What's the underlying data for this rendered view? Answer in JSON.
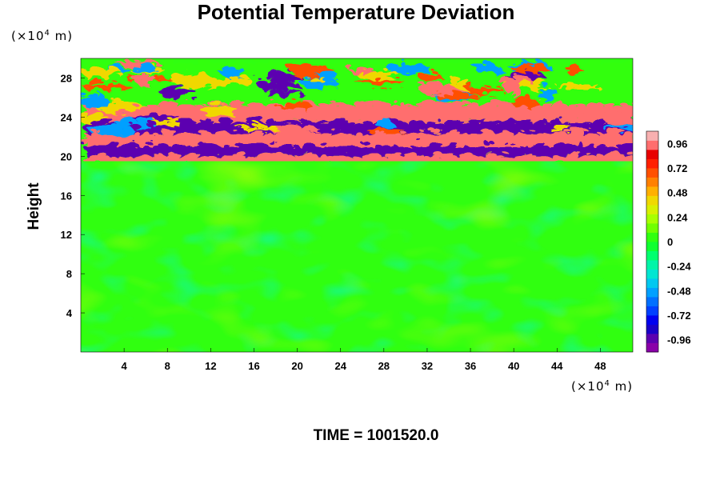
{
  "chart_data": {
    "type": "heatmap",
    "title": "Potential Temperature Deviation",
    "ylabel": "Height",
    "xlabel": "",
    "x_unit": {
      "prefix": "(×10",
      "exp": "4",
      "suffix": " m)"
    },
    "y_unit": {
      "prefix": "(×10",
      "exp": "4",
      "suffix": " m)"
    },
    "xlim": [
      0,
      51
    ],
    "ylim": [
      0,
      30
    ],
    "x_ticks": [
      {
        "v": 4,
        "label": "4"
      },
      {
        "v": 8,
        "label": "8"
      },
      {
        "v": 12,
        "label": "12"
      },
      {
        "v": 16,
        "label": "16"
      },
      {
        "v": 20,
        "label": "20"
      },
      {
        "v": 24,
        "label": "24"
      },
      {
        "v": 28,
        "label": "28"
      },
      {
        "v": 32,
        "label": "32"
      },
      {
        "v": 36,
        "label": "36"
      },
      {
        "v": 40,
        "label": "40"
      },
      {
        "v": 44,
        "label": "44"
      },
      {
        "v": 48,
        "label": "48"
      }
    ],
    "y_ticks": [
      {
        "v": 4,
        "label": "4"
      },
      {
        "v": 8,
        "label": "8"
      },
      {
        "v": 12,
        "label": "12"
      },
      {
        "v": 16,
        "label": "16"
      },
      {
        "v": 20,
        "label": "20"
      },
      {
        "v": 24,
        "label": "24"
      },
      {
        "v": 28,
        "label": "28"
      }
    ],
    "colorbar": {
      "range": [
        -1.08,
        1.08
      ],
      "labels": [
        {
          "v": 0.96,
          "label": "0.96"
        },
        {
          "v": 0.72,
          "label": "0.72"
        },
        {
          "v": 0.48,
          "label": "0.48"
        },
        {
          "v": 0.24,
          "label": "0.24"
        },
        {
          "v": 0,
          "label": "0"
        },
        {
          "v": -0.24,
          "label": "-0.24"
        },
        {
          "v": -0.48,
          "label": "-0.48"
        },
        {
          "v": -0.72,
          "label": "-0.72"
        },
        {
          "v": -0.96,
          "label": "-0.96"
        }
      ],
      "colors": [
        "#8a00a8",
        "#5c00b0",
        "#1a00c8",
        "#0000f0",
        "#0040ff",
        "#0070ff",
        "#00a0ff",
        "#00c8f0",
        "#00e6d2",
        "#00f5a8",
        "#00ff6e",
        "#10ff30",
        "#30ff10",
        "#70ff00",
        "#a8ff00",
        "#d8f000",
        "#f0d800",
        "#ffb000",
        "#ff8000",
        "#ff5000",
        "#ff2000",
        "#e80000",
        "#ff6e6e",
        "#f8b0b0"
      ]
    },
    "regions": [
      {
        "y": [
          0,
          19.5
        ],
        "value": 0.0,
        "description": "near-zero field with weak eddies"
      },
      {
        "y": [
          19.5,
          20.5
        ],
        "value": 0.96,
        "description": "pink band"
      },
      {
        "y": [
          20.5,
          21.5
        ],
        "value": -0.96,
        "description": "purple band"
      },
      {
        "y": [
          21.5,
          22.8
        ],
        "value": 0.96,
        "description": "pink band"
      },
      {
        "y": [
          22.8,
          24
        ],
        "value": -0.96,
        "description": "purple band"
      },
      {
        "y": [
          24,
          25.8
        ],
        "value": 0.96,
        "description": "pink filaments"
      },
      {
        "y": [
          25.8,
          30
        ],
        "value": 0.0,
        "description": "alternating waves"
      }
    ],
    "footer": "TIME = 1001520.0"
  }
}
